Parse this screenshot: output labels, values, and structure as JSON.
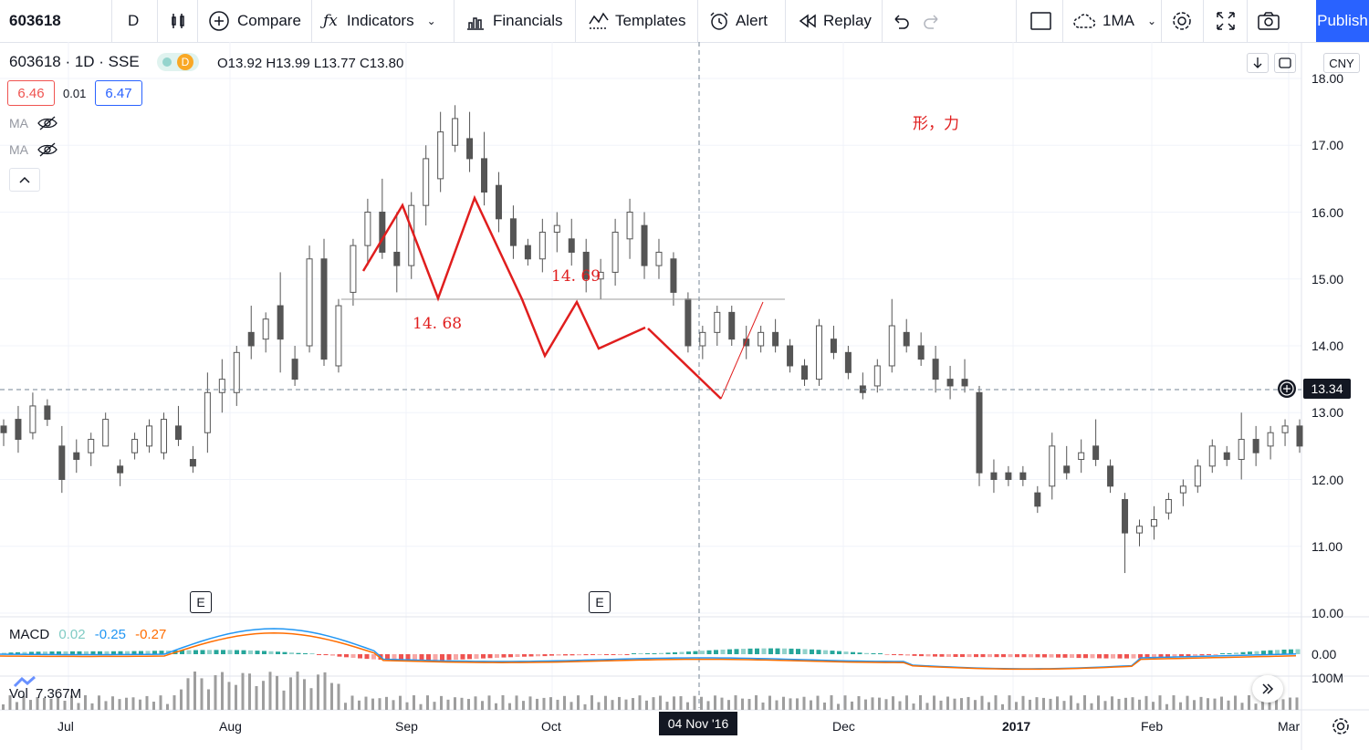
{
  "toolbar": {
    "symbol": "603618",
    "interval": "D",
    "compare": "Compare",
    "indicators": "Indicators",
    "financials": "Financials",
    "templates": "Templates",
    "alert": "Alert",
    "replay": "Replay",
    "layout": "1MA",
    "publish": "Publish"
  },
  "legend": {
    "title": "603618 · 1D · SSE",
    "badge": "D",
    "ohlc": "O13.92  H13.99  L13.77  C13.80",
    "bid": "6.46",
    "spread": "0.01",
    "ask": "6.47",
    "ma1": "MA",
    "ma2": "MA"
  },
  "annotations": {
    "text1": "形，力",
    "level_a": "14. 69",
    "level_b": "14. 68"
  },
  "price_axis": {
    "currency": "CNY",
    "ticks": [
      "18.00",
      "17.00",
      "16.00",
      "15.00",
      "14.00",
      "13.00",
      "12.00",
      "11.00",
      "10.00"
    ],
    "crosshair_price": "13.34"
  },
  "time_axis": {
    "ticks": [
      "Jul",
      "Aug",
      "Sep",
      "Oct",
      "Dec",
      "2017",
      "Feb",
      "Mar"
    ],
    "crosshair_date": "04 Nov '16"
  },
  "events": [
    "E",
    "E"
  ],
  "macd": {
    "label": "MACD",
    "hist": "0.02",
    "macd": "-0.25",
    "signal": "-0.27",
    "axis_value": "0.00"
  },
  "volume": {
    "label": "Vol",
    "value": "7.367M",
    "axis_value": "100M"
  },
  "colors": {
    "accent": "#2962ff",
    "up_candle": "#ffffff",
    "down_candle": "#555555",
    "annotation_red": "#e01e1e",
    "macd_line": "#2196f3",
    "signal_line": "#ff6d00",
    "hist_pos": "#26a69a",
    "hist_neg": "#ef5350"
  },
  "chart_data": {
    "type": "candlestick",
    "ylim": [
      10,
      18
    ],
    "candles": [
      [
        12.8,
        12.9,
        12.5,
        12.7
      ],
      [
        12.9,
        13.1,
        12.4,
        12.6
      ],
      [
        12.7,
        13.3,
        12.6,
        13.1
      ],
      [
        13.1,
        13.2,
        12.8,
        12.9
      ],
      [
        12.5,
        12.8,
        11.8,
        12.0
      ],
      [
        12.4,
        12.6,
        12.1,
        12.3
      ],
      [
        12.4,
        12.7,
        12.2,
        12.6
      ],
      [
        12.5,
        13.0,
        12.5,
        12.9
      ],
      [
        12.2,
        12.3,
        11.9,
        12.1
      ],
      [
        12.4,
        12.7,
        12.3,
        12.6
      ],
      [
        12.5,
        12.9,
        12.4,
        12.8
      ],
      [
        12.4,
        13.0,
        12.3,
        12.9
      ],
      [
        12.8,
        13.1,
        12.5,
        12.6
      ],
      [
        12.3,
        12.5,
        12.1,
        12.2
      ],
      [
        12.7,
        13.6,
        12.4,
        13.3
      ],
      [
        13.3,
        13.8,
        13.0,
        13.5
      ],
      [
        13.3,
        14.0,
        13.1,
        13.9
      ],
      [
        14.2,
        14.6,
        13.8,
        14.0
      ],
      [
        14.1,
        14.5,
        13.9,
        14.4
      ],
      [
        14.6,
        15.1,
        13.6,
        14.1
      ],
      [
        13.8,
        14.0,
        13.4,
        13.5
      ],
      [
        14.0,
        15.5,
        13.9,
        15.3
      ],
      [
        15.3,
        15.6,
        13.7,
        13.8
      ],
      [
        13.7,
        14.7,
        13.6,
        14.6
      ],
      [
        14.8,
        15.6,
        14.6,
        15.5
      ],
      [
        15.5,
        16.2,
        15.2,
        16.0
      ],
      [
        16.0,
        16.5,
        15.3,
        15.4
      ],
      [
        15.4,
        16.0,
        14.8,
        15.2
      ],
      [
        15.2,
        16.3,
        15.0,
        16.1
      ],
      [
        16.1,
        17.0,
        15.8,
        16.8
      ],
      [
        16.5,
        17.5,
        16.3,
        17.2
      ],
      [
        17.0,
        17.6,
        16.9,
        17.4
      ],
      [
        17.1,
        17.5,
        16.6,
        16.8
      ],
      [
        16.8,
        17.2,
        16.1,
        16.3
      ],
      [
        16.4,
        16.6,
        15.7,
        15.9
      ],
      [
        15.9,
        16.1,
        15.3,
        15.5
      ],
      [
        15.5,
        15.6,
        15.2,
        15.3
      ],
      [
        15.3,
        15.9,
        15.1,
        15.7
      ],
      [
        15.7,
        16.0,
        15.4,
        15.8
      ],
      [
        15.6,
        15.9,
        15.2,
        15.4
      ],
      [
        15.4,
        15.6,
        14.8,
        15.0
      ],
      [
        15.0,
        15.3,
        14.7,
        15.1
      ],
      [
        15.1,
        15.9,
        14.9,
        15.7
      ],
      [
        15.6,
        16.2,
        15.3,
        16.0
      ],
      [
        15.8,
        16.0,
        15.0,
        15.2
      ],
      [
        15.2,
        15.6,
        15.0,
        15.4
      ],
      [
        15.3,
        15.4,
        14.6,
        14.8
      ],
      [
        14.7,
        14.8,
        13.9,
        14.0
      ],
      [
        14.0,
        14.3,
        13.8,
        14.2
      ],
      [
        14.2,
        14.6,
        14.0,
        14.5
      ],
      [
        14.5,
        14.6,
        14.0,
        14.1
      ],
      [
        14.1,
        14.3,
        13.8,
        14.0
      ],
      [
        14.0,
        14.3,
        13.9,
        14.2
      ],
      [
        14.2,
        14.4,
        13.9,
        14.0
      ],
      [
        14.0,
        14.1,
        13.6,
        13.7
      ],
      [
        13.7,
        13.8,
        13.4,
        13.5
      ],
      [
        13.5,
        14.4,
        13.4,
        14.3
      ],
      [
        14.1,
        14.3,
        13.8,
        13.9
      ],
      [
        13.9,
        14.0,
        13.5,
        13.6
      ],
      [
        13.4,
        13.6,
        13.2,
        13.3
      ],
      [
        13.4,
        13.8,
        13.3,
        13.7
      ],
      [
        13.7,
        14.7,
        13.6,
        14.3
      ],
      [
        14.2,
        14.4,
        13.9,
        14.0
      ],
      [
        14.0,
        14.2,
        13.7,
        13.8
      ],
      [
        13.8,
        14.0,
        13.3,
        13.5
      ],
      [
        13.5,
        13.7,
        13.2,
        13.4
      ],
      [
        13.5,
        13.8,
        13.3,
        13.4
      ],
      [
        13.3,
        13.4,
        11.9,
        12.1
      ],
      [
        12.1,
        12.3,
        11.8,
        12.0
      ],
      [
        12.1,
        12.2,
        11.9,
        12.0
      ],
      [
        12.1,
        12.2,
        11.9,
        12.0
      ],
      [
        11.8,
        11.9,
        11.5,
        11.6
      ],
      [
        11.9,
        12.7,
        11.7,
        12.5
      ],
      [
        12.2,
        12.5,
        12.0,
        12.1
      ],
      [
        12.3,
        12.6,
        12.1,
        12.4
      ],
      [
        12.5,
        12.9,
        12.2,
        12.3
      ],
      [
        12.2,
        12.3,
        11.8,
        11.9
      ],
      [
        11.7,
        11.8,
        10.6,
        11.2
      ],
      [
        11.2,
        11.4,
        11.0,
        11.3
      ],
      [
        11.3,
        11.6,
        11.1,
        11.4
      ],
      [
        11.5,
        11.8,
        11.4,
        11.7
      ],
      [
        11.8,
        12.0,
        11.6,
        11.9
      ],
      [
        11.9,
        12.3,
        11.8,
        12.2
      ],
      [
        12.2,
        12.6,
        12.1,
        12.5
      ],
      [
        12.4,
        12.5,
        12.2,
        12.3
      ],
      [
        12.3,
        13.0,
        12.0,
        12.6
      ],
      [
        12.6,
        12.8,
        12.2,
        12.4
      ],
      [
        12.5,
        12.8,
        12.3,
        12.7
      ],
      [
        12.7,
        12.9,
        12.5,
        12.8
      ],
      [
        12.8,
        12.9,
        12.4,
        12.5
      ]
    ]
  }
}
